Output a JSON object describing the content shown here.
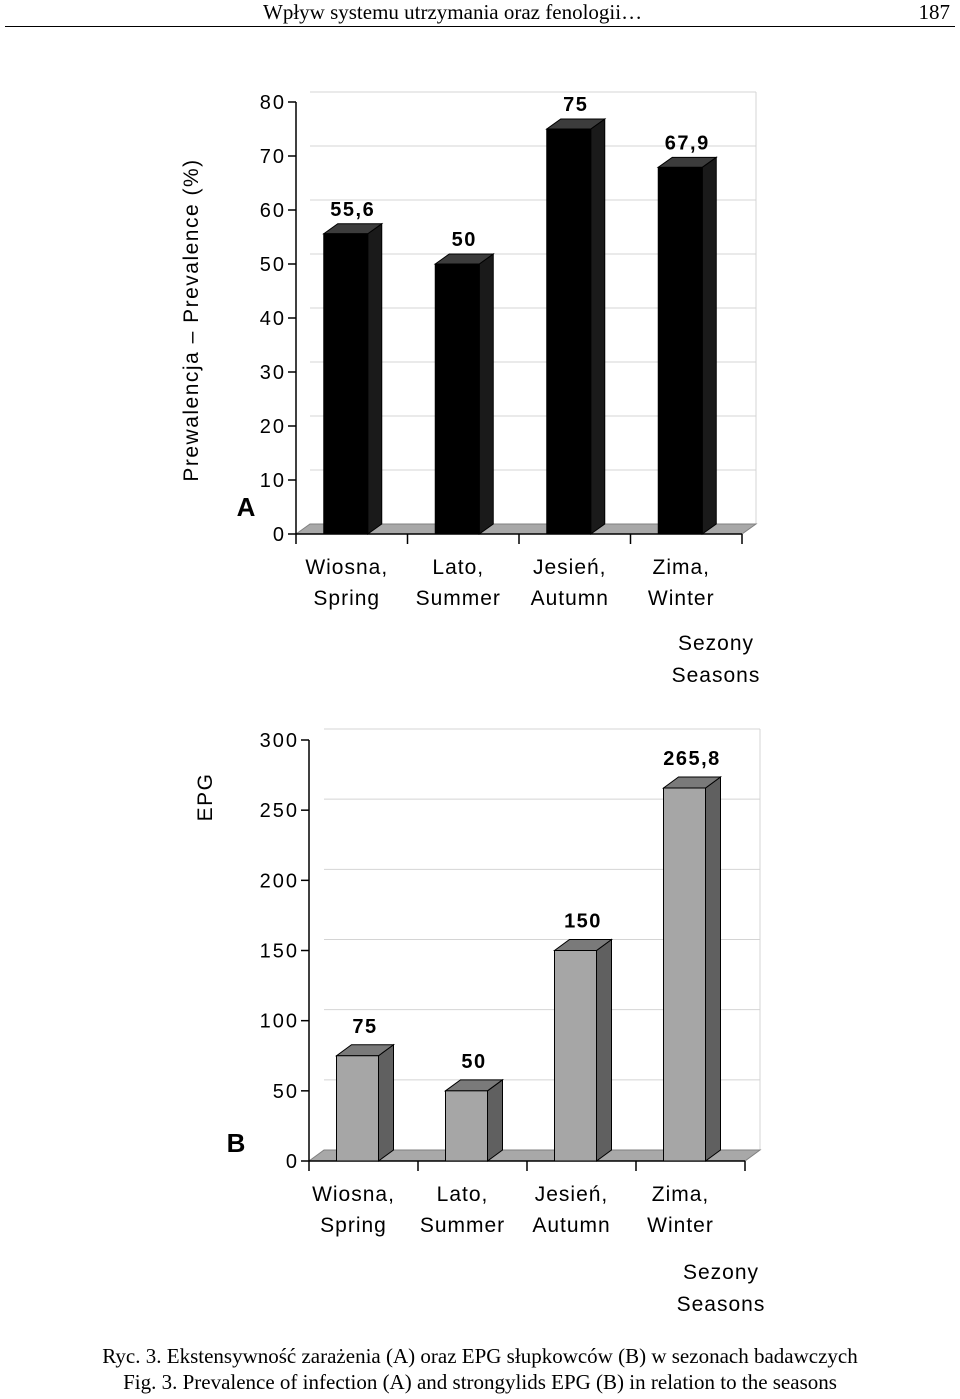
{
  "header": {
    "running_title": "Wpływ systemu utrzymania oraz fenologii…",
    "page_number": "187"
  },
  "chart_data": [
    {
      "type": "bar",
      "panel_label": "A",
      "ylabel": "Prewalencja – Prevalence (%)",
      "xlabel_lines": [
        "Sezony",
        "Seasons"
      ],
      "categories": [
        [
          "Wiosna,",
          "Spring"
        ],
        [
          "Lato,",
          "Summer"
        ],
        [
          "Jesień,",
          "Autumn"
        ],
        [
          "Zima,",
          "Winter"
        ]
      ],
      "values": [
        55.6,
        50,
        75,
        67.9
      ],
      "data_labels": [
        "55,6",
        "50",
        "75",
        "67,9"
      ],
      "ylim": [
        0,
        80
      ],
      "yticks": [
        0,
        10,
        20,
        30,
        40,
        50,
        60,
        70,
        80
      ],
      "grid": true,
      "bar_color": "#000000",
      "bar_side_color": "#1a1a1a",
      "bar_top_color": "#3c3c3c"
    },
    {
      "type": "bar",
      "panel_label": "B",
      "ylabel": "EPG",
      "xlabel_lines": [
        "Sezony",
        "Seasons"
      ],
      "categories": [
        [
          "Wiosna,",
          "Spring"
        ],
        [
          "Lato,",
          "Summer"
        ],
        [
          "Jesień,",
          "Autumn"
        ],
        [
          "Zima,",
          "Winter"
        ]
      ],
      "values": [
        75,
        50,
        150,
        265.8
      ],
      "data_labels": [
        "75",
        "50",
        "150",
        "265,8"
      ],
      "ylim": [
        0,
        300
      ],
      "yticks": [
        0,
        50,
        100,
        150,
        200,
        250,
        300
      ],
      "grid": true,
      "bar_color": "#a6a6a6",
      "bar_side_color": "#606060",
      "bar_top_color": "#7a7a7a"
    }
  ],
  "caption": {
    "polish": "Ryc. 3. Ekstensywność zarażenia (A) oraz EPG słupkowców (B) w sezonach badawczych",
    "english": "Fig. 3. Prevalence of infection (A) and strongylids EPG (B) in relation to the seasons"
  }
}
